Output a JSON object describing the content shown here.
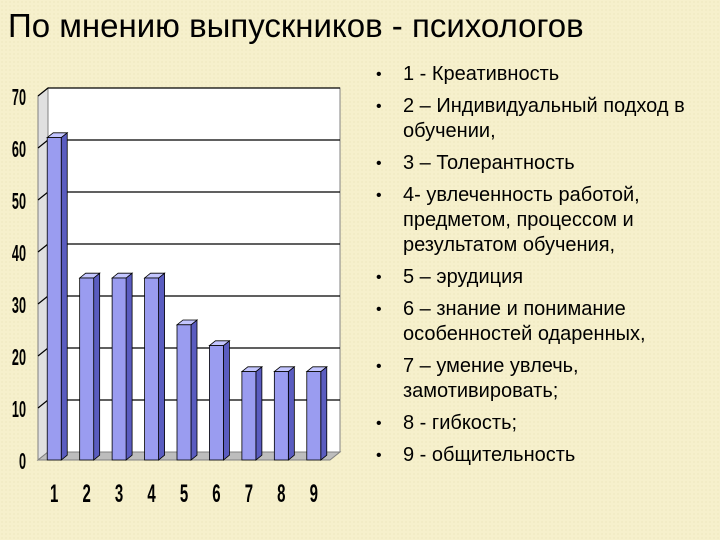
{
  "page": {
    "title": "По мнению выпускников - психологов"
  },
  "legend_items": [
    "1 - Креативность",
    "2 – Индивидуальный подход в обучении,",
    "3 – Толерантность",
    "4- увлеченность работой, предметом, процессом и результатом обучения,",
    "5 – эрудиция",
    "6 – знание и понимание особенностей одаренных,",
    "7 – умение увлечь, замотивировать;",
    "8 - гибкость;",
    "9 - общительность"
  ],
  "chart_data": {
    "type": "bar",
    "categories": [
      "1",
      "2",
      "3",
      "4",
      "5",
      "6",
      "7",
      "8",
      "9"
    ],
    "values": [
      62,
      35,
      35,
      35,
      26,
      22,
      17,
      17,
      17
    ],
    "yticks": [
      "0",
      "10",
      "20",
      "30",
      "40",
      "50",
      "60",
      "70"
    ],
    "ylim": [
      0,
      70
    ],
    "grid": true,
    "bar_3d": true,
    "colors": {
      "bar_face": "#9a9cf0",
      "bar_side": "#5a5cc0",
      "bar_top": "#c4c6ff",
      "floor": "#bdbdbd",
      "grid": "#000000",
      "plot_bg": "#ffffff"
    }
  }
}
